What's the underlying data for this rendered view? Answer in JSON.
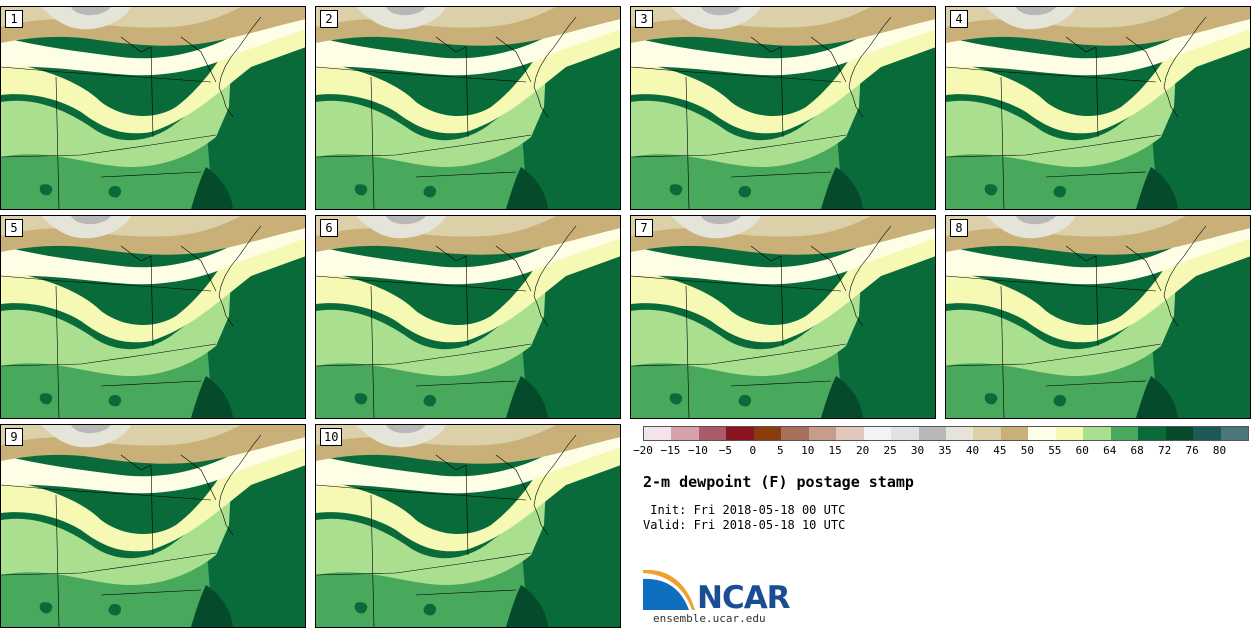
{
  "panels": [
    {
      "label": "1"
    },
    {
      "label": "2"
    },
    {
      "label": "3"
    },
    {
      "label": "4"
    },
    {
      "label": "5"
    },
    {
      "label": "6"
    },
    {
      "label": "7"
    },
    {
      "label": "8"
    },
    {
      "label": "9"
    },
    {
      "label": "10"
    }
  ],
  "colorbar": {
    "colors": [
      "#f4e4e8",
      "#d6a0ac",
      "#ad5a68",
      "#8a1420",
      "#8a3c10",
      "#a8705a",
      "#c89c8c",
      "#e2c8bc",
      "#f4f4f4",
      "#e2e2e2",
      "#b8b8b8",
      "#e4e4d8",
      "#dcd0a8",
      "#c8b078",
      "#fefee6",
      "#f6f9b4",
      "#aadf90",
      "#48a85c",
      "#0a6b3a",
      "#064a2c",
      "#1c5a58",
      "#4a7878"
    ],
    "tick_labels": [
      "−20",
      "−15",
      "−10",
      "−5",
      "0",
      "5",
      "10",
      "15",
      "20",
      "25",
      "30",
      "35",
      "40",
      "45",
      "50",
      "55",
      "60",
      "64",
      "68",
      "72",
      "76",
      "80"
    ]
  },
  "title": "2-m dewpoint (F) postage stamp",
  "init_text": " Init: Fri 2018-05-18 00 UTC",
  "valid_text": "Valid: Fri 2018-05-18 10 UTC",
  "logo": {
    "name": "NCAR",
    "url": "ensemble.ucar.edu"
  }
}
